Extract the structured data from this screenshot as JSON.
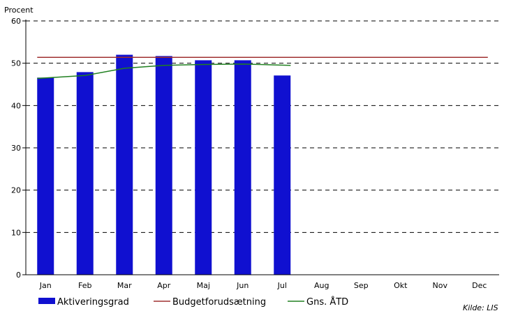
{
  "chart_data": {
    "type": "bar",
    "ylabel": "Procent",
    "ylim": [
      0,
      60
    ],
    "yticks": [
      0,
      10,
      20,
      30,
      40,
      50,
      60
    ],
    "grid": true,
    "legend_position": "bottom",
    "categories": [
      "Jan",
      "Feb",
      "Mar",
      "Apr",
      "Maj",
      "Jun",
      "Jul",
      "Aug",
      "Sep",
      "Okt",
      "Nov",
      "Dec"
    ],
    "series": [
      {
        "name": "Aktiveringsgrad",
        "kind": "bar",
        "color": "#1010d0",
        "values": [
          46.6,
          47.9,
          52.0,
          51.7,
          50.7,
          50.7,
          47.1,
          null,
          null,
          null,
          null,
          null
        ]
      },
      {
        "name": "Budgetforudsætning",
        "kind": "line",
        "color": "#a03030",
        "values": [
          51.4,
          51.4,
          51.4,
          51.4,
          51.4,
          51.4,
          51.4,
          51.4,
          51.4,
          51.4,
          51.4,
          51.4
        ]
      },
      {
        "name": "Gns. ÅTD",
        "kind": "line",
        "color": "#208020",
        "values": [
          46.4,
          47.1,
          48.8,
          49.5,
          49.7,
          49.8,
          49.5,
          null,
          null,
          null,
          null,
          null
        ]
      }
    ],
    "source": "Kilde: LIS"
  }
}
